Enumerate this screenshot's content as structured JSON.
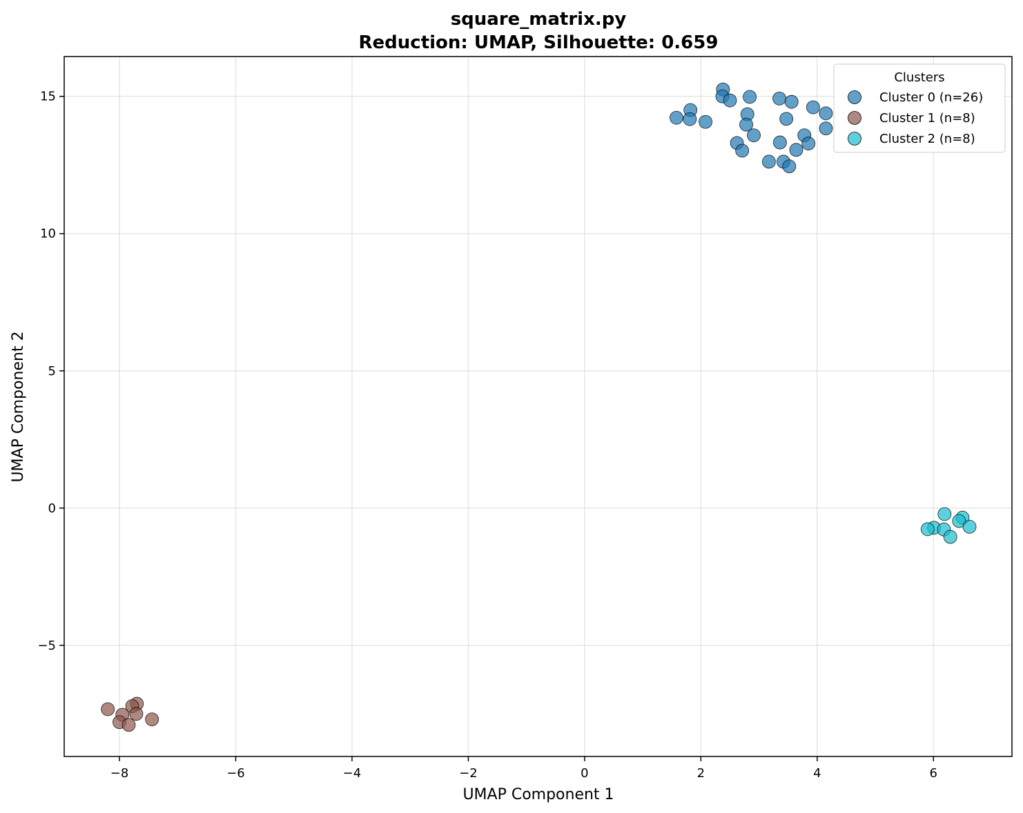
{
  "chart_data": {
    "type": "scatter",
    "title": "square_matrix.py",
    "subtitle": "Reduction: UMAP, Silhouette: 0.659",
    "xlabel": "UMAP Component 1",
    "ylabel": "UMAP Component 2",
    "xlim": [
      -8.95,
      7.35
    ],
    "ylim": [
      -9.05,
      16.45
    ],
    "xticks": [
      -8,
      -6,
      -4,
      -2,
      0,
      2,
      4,
      6
    ],
    "yticks": [
      -5,
      0,
      5,
      10,
      15
    ],
    "xtick_labels": [
      "−8",
      "−6",
      "−4",
      "−2",
      "0",
      "2",
      "4",
      "6"
    ],
    "ytick_labels": [
      "−5",
      "0",
      "5",
      "10",
      "15"
    ],
    "grid": true,
    "legend": {
      "title": "Clusters",
      "placement": "top-right"
    },
    "series": [
      {
        "name": "Cluster 0 (n=26)",
        "color": "#1f77b4",
        "points": [
          [
            2.38,
            15.25
          ],
          [
            2.37,
            15.0
          ],
          [
            2.5,
            14.85
          ],
          [
            2.84,
            14.98
          ],
          [
            3.35,
            14.92
          ],
          [
            3.56,
            14.8
          ],
          [
            3.93,
            14.6
          ],
          [
            4.15,
            14.38
          ],
          [
            1.58,
            14.22
          ],
          [
            1.82,
            14.5
          ],
          [
            1.81,
            14.17
          ],
          [
            2.08,
            14.07
          ],
          [
            2.8,
            14.35
          ],
          [
            2.78,
            13.97
          ],
          [
            2.91,
            13.58
          ],
          [
            3.47,
            14.18
          ],
          [
            3.78,
            13.58
          ],
          [
            4.15,
            13.83
          ],
          [
            2.62,
            13.3
          ],
          [
            2.71,
            13.02
          ],
          [
            3.36,
            13.32
          ],
          [
            3.85,
            13.28
          ],
          [
            3.64,
            13.05
          ],
          [
            3.17,
            12.62
          ],
          [
            3.42,
            12.62
          ],
          [
            3.52,
            12.45
          ]
        ]
      },
      {
        "name": "Cluster 1 (n=8)",
        "color": "#8c564b",
        "points": [
          [
            -8.2,
            -7.33
          ],
          [
            -7.7,
            -7.13
          ],
          [
            -7.78,
            -7.22
          ],
          [
            -7.95,
            -7.53
          ],
          [
            -7.71,
            -7.5
          ],
          [
            -8.0,
            -7.8
          ],
          [
            -7.84,
            -7.9
          ],
          [
            -7.44,
            -7.7
          ]
        ]
      },
      {
        "name": "Cluster 2 (n=8)",
        "color": "#17becf",
        "points": [
          [
            6.19,
            -0.22
          ],
          [
            6.5,
            -0.35
          ],
          [
            6.44,
            -0.47
          ],
          [
            6.01,
            -0.72
          ],
          [
            5.9,
            -0.77
          ],
          [
            6.18,
            -0.78
          ],
          [
            6.62,
            -0.68
          ],
          [
            6.29,
            -1.05
          ]
        ]
      }
    ]
  }
}
